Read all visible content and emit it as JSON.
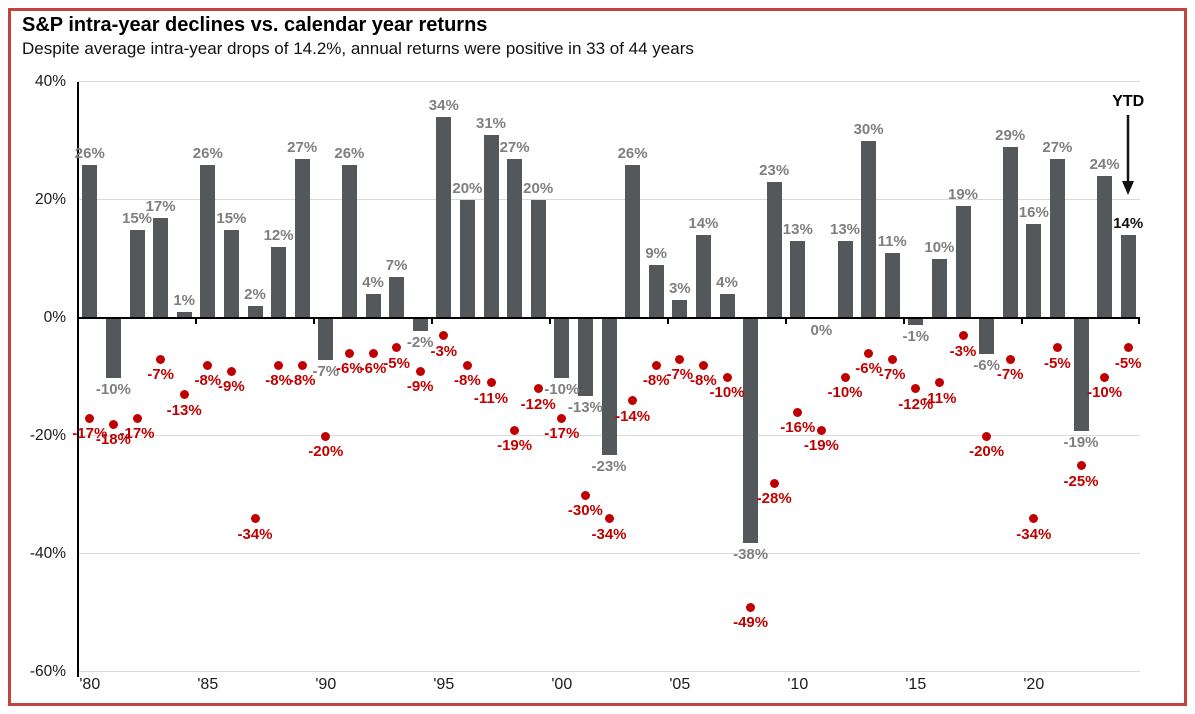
{
  "header": {
    "title": "S&P intra-year declines vs. calendar year returns",
    "subtitle": "Despite average intra-year drops of 14.2%, annual returns were positive in 33 of 44 years"
  },
  "chart_data": {
    "type": "bar",
    "title": "S&P intra-year declines vs. calendar year returns",
    "subtitle": "Despite average intra-year drops of 14.2%, annual returns were positive in 33 of 44 years",
    "years": [
      1980,
      1981,
      1982,
      1983,
      1984,
      1985,
      1986,
      1987,
      1988,
      1989,
      1990,
      1991,
      1992,
      1993,
      1994,
      1995,
      1996,
      1997,
      1998,
      1999,
      2000,
      2001,
      2002,
      2003,
      2004,
      2005,
      2006,
      2007,
      2008,
      2009,
      2010,
      2011,
      2012,
      2013,
      2014,
      2015,
      2016,
      2017,
      2018,
      2019,
      2020,
      2021,
      2022,
      2023,
      2024
    ],
    "series": [
      {
        "name": "Calendar year return",
        "type": "bar",
        "color": "#54585a",
        "label_color": "#7f7f7f",
        "values": [
          26,
          -10,
          15,
          17,
          1,
          26,
          15,
          2,
          12,
          27,
          -7,
          26,
          4,
          7,
          -2,
          34,
          20,
          31,
          27,
          20,
          -10,
          -13,
          -23,
          26,
          9,
          3,
          14,
          4,
          -38,
          23,
          13,
          0,
          13,
          30,
          11,
          -1,
          10,
          19,
          -6,
          29,
          16,
          27,
          -19,
          24,
          14
        ]
      },
      {
        "name": "Intra-year decline",
        "type": "scatter",
        "color": "#c00000",
        "label_color": "#c00000",
        "values": [
          -17,
          -18,
          -17,
          -7,
          -13,
          -8,
          -9,
          -34,
          -8,
          -8,
          -20,
          -6,
          -6,
          -5,
          -9,
          -3,
          -8,
          -11,
          -19,
          -12,
          -17,
          -30,
          -34,
          -14,
          -8,
          -7,
          -8,
          -10,
          -49,
          -28,
          -16,
          -19,
          -10,
          -6,
          -7,
          -12,
          -11,
          -3,
          -20,
          -7,
          -34,
          -5,
          -25,
          -10,
          -5
        ]
      }
    ],
    "ylim": [
      -60,
      40
    ],
    "yticks": [
      {
        "value": 40,
        "label": "40%"
      },
      {
        "value": 20,
        "label": "20%"
      },
      {
        "value": 0,
        "label": "0%"
      },
      {
        "value": -20,
        "label": "-20%"
      },
      {
        "value": -40,
        "label": "-40%"
      },
      {
        "value": -60,
        "label": "-60%"
      }
    ],
    "xticks": [
      {
        "year": 1980,
        "label": "'80"
      },
      {
        "year": 1985,
        "label": "'85"
      },
      {
        "year": 1990,
        "label": "'90"
      },
      {
        "year": 1995,
        "label": "'95"
      },
      {
        "year": 2000,
        "label": "'00"
      },
      {
        "year": 2005,
        "label": "'05"
      },
      {
        "year": 2010,
        "label": "'10"
      },
      {
        "year": 2015,
        "label": "'15"
      },
      {
        "year": 2020,
        "label": "'20"
      }
    ],
    "grid": "horizontal",
    "legend": "none",
    "annotations": {
      "ytd_label": "YTD",
      "ytd_value_label": "14%",
      "ytd_value_color": "#111111"
    }
  },
  "colors": {
    "bar": "#54585a",
    "bar_label": "#7f7f7f",
    "dot": "#c00000",
    "frame_border": "#c2443e",
    "gridline": "#d9d9d9",
    "axis": "#000000"
  }
}
